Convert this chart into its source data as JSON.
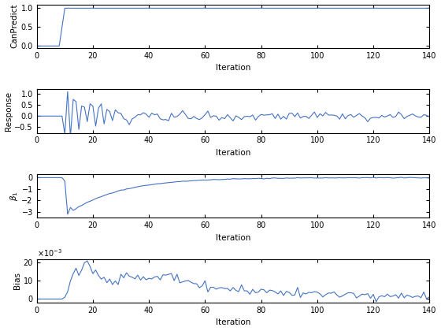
{
  "subplots": [
    {
      "ylabel": "CanPredict",
      "xlabel": "Iteration",
      "ylim": [
        -0.05,
        1.1
      ],
      "yticks": [
        0,
        0.5,
        1
      ],
      "xlim": [
        0,
        140
      ]
    },
    {
      "ylabel": "Response",
      "xlabel": "Iteration",
      "ylim": [
        -0.75,
        1.2
      ],
      "yticks": [
        -0.5,
        0,
        0.5,
        1
      ],
      "xlim": [
        0,
        140
      ]
    },
    {
      "ylabel": "$\\beta_1$",
      "xlabel": "Iteration",
      "ylim": [
        -3.5,
        0.3
      ],
      "yticks": [
        -3,
        -2,
        -1,
        0
      ],
      "xlim": [
        0,
        140
      ]
    },
    {
      "ylabel": "Bias",
      "xlabel": "Iteration",
      "ylim": [
        -0.002,
        0.022
      ],
      "yticks": [
        0,
        0.01,
        0.02
      ],
      "xlim": [
        0,
        140
      ]
    }
  ],
  "line_color": "#4472C4",
  "line_width": 0.8,
  "bg_color": "#ffffff",
  "xticks": [
    0,
    20,
    40,
    60,
    80,
    100,
    120,
    140
  ]
}
